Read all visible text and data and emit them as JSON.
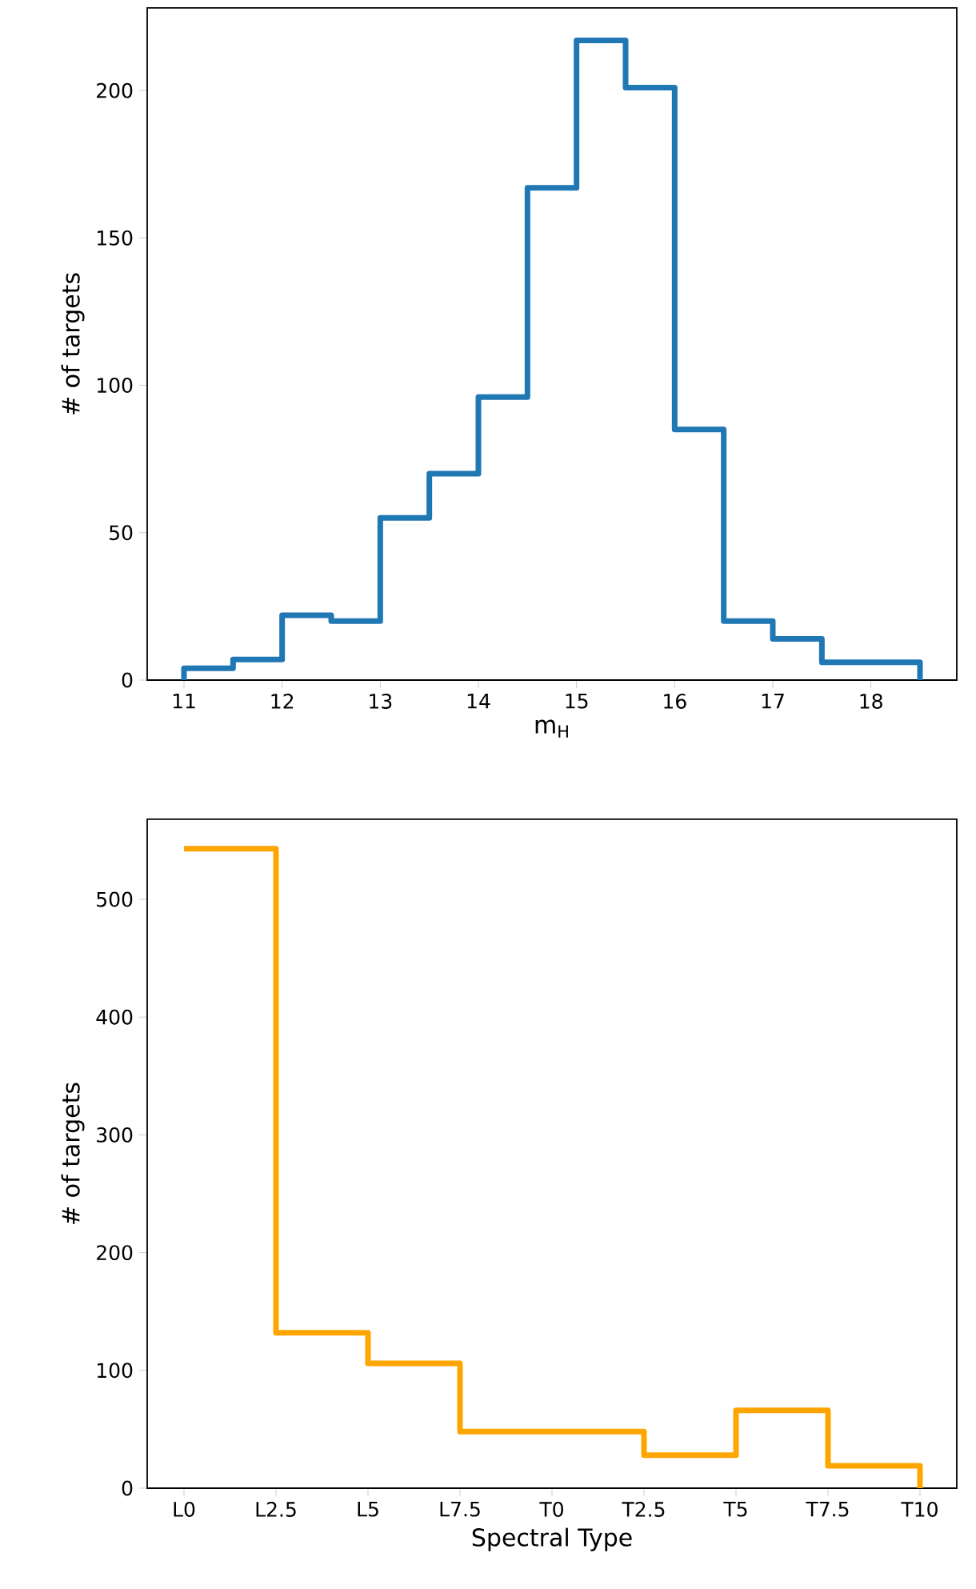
{
  "chart_data": [
    {
      "type": "histogram",
      "bins": [
        11,
        11.5,
        12,
        12.5,
        13,
        13.5,
        14,
        14.5,
        15,
        15.5,
        16,
        16.5,
        17,
        17.5,
        18,
        18.5
      ],
      "values": [
        4,
        7,
        22,
        20,
        55,
        70,
        96,
        167,
        217,
        201,
        85,
        20,
        14,
        6,
        6
      ],
      "color": "#1f77b4",
      "xlim": [
        10.625,
        18.875
      ],
      "ylim": [
        0,
        228
      ],
      "xticks": [
        11,
        12,
        13,
        14,
        15,
        16,
        17,
        18
      ],
      "yticks": [
        0,
        50,
        100,
        150,
        200
      ],
      "xlabel": "m$_{H}$",
      "ylabel": "# of targets"
    },
    {
      "type": "step",
      "categories": [
        "L0",
        "L2.5",
        "L5",
        "L7.5",
        "T0",
        "T2.5",
        "T5",
        "T7.5",
        "T10"
      ],
      "values": [
        543,
        132,
        106,
        48,
        48,
        28,
        66,
        19,
        0
      ],
      "color": "#ffa500",
      "ylim": [
        0,
        568
      ],
      "yticks": [
        0,
        100,
        200,
        300,
        400,
        500
      ],
      "xlabel": "Spectral Type",
      "ylabel": "# of targets"
    }
  ]
}
